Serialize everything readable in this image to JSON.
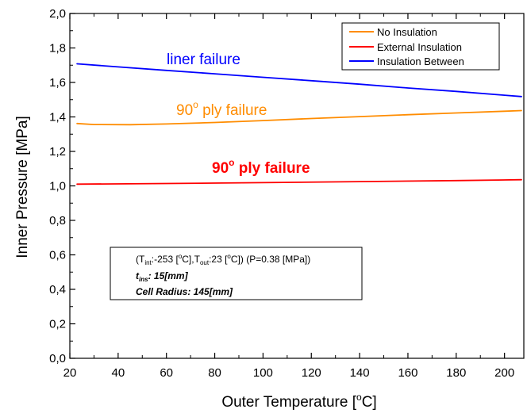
{
  "chart_data": {
    "type": "line",
    "xlabel": "Outer Temperature [",
    "xlabel_sup": "o",
    "xlabel_end": "C]",
    "ylabel": "Inner Pressure [MPa]",
    "xlim": [
      20,
      208
    ],
    "ylim": [
      0.0,
      2.0
    ],
    "x_ticks": [
      "20",
      "40",
      "60",
      "80",
      "100",
      "120",
      "140",
      "160",
      "180",
      "200"
    ],
    "y_ticks": [
      "0,0",
      "0,2",
      "0,4",
      "0,6",
      "0,8",
      "1,0",
      "1,2",
      "1,4",
      "1,6",
      "1,8",
      "2,0"
    ],
    "legend_position": "top-right",
    "series": [
      {
        "name": "No Insulation",
        "color": "#ff8c00",
        "x": [
          23,
          30,
          45,
          60,
          80,
          100,
          120,
          140,
          160,
          180,
          200,
          207
        ],
        "y": [
          1.362,
          1.356,
          1.355,
          1.359,
          1.368,
          1.379,
          1.391,
          1.402,
          1.413,
          1.423,
          1.433,
          1.437
        ]
      },
      {
        "name": "External Insulation",
        "color": "#ff0000",
        "x": [
          23,
          60,
          100,
          140,
          180,
          207
        ],
        "y": [
          1.01,
          1.014,
          1.019,
          1.025,
          1.031,
          1.036
        ]
      },
      {
        "name": "Insulation Between",
        "color": "#0000ff",
        "x": [
          23,
          40,
          60,
          80,
          100,
          120,
          140,
          160,
          180,
          200,
          207
        ],
        "y": [
          1.708,
          1.69,
          1.67,
          1.65,
          1.63,
          1.61,
          1.59,
          1.568,
          1.548,
          1.526,
          1.518
        ]
      }
    ],
    "annotations": [
      {
        "text": "liner failure",
        "color": "#0000ff",
        "bold": false,
        "sup": ""
      },
      {
        "text": "90",
        "sup": "o",
        "after": " ply failure",
        "color": "#ff8c00",
        "bold": false
      },
      {
        "text": "90",
        "sup": "o",
        "after": " ply failure",
        "color": "#ff0000",
        "bold": true
      }
    ],
    "infobox": {
      "line1": {
        "p1": "(T",
        "s1": "int",
        "p2": ":-253 [",
        "s2": "o",
        "p3": "C],T",
        "s3": "out",
        "p4": ":23 [",
        "s4": "o",
        "p5": "C]) (P=0.38 [MPa])"
      },
      "line2": {
        "p1": "t",
        "s1": "ins",
        "p2": ": 15[mm]"
      },
      "line3": "Cell Radius: 145[mm]"
    }
  }
}
